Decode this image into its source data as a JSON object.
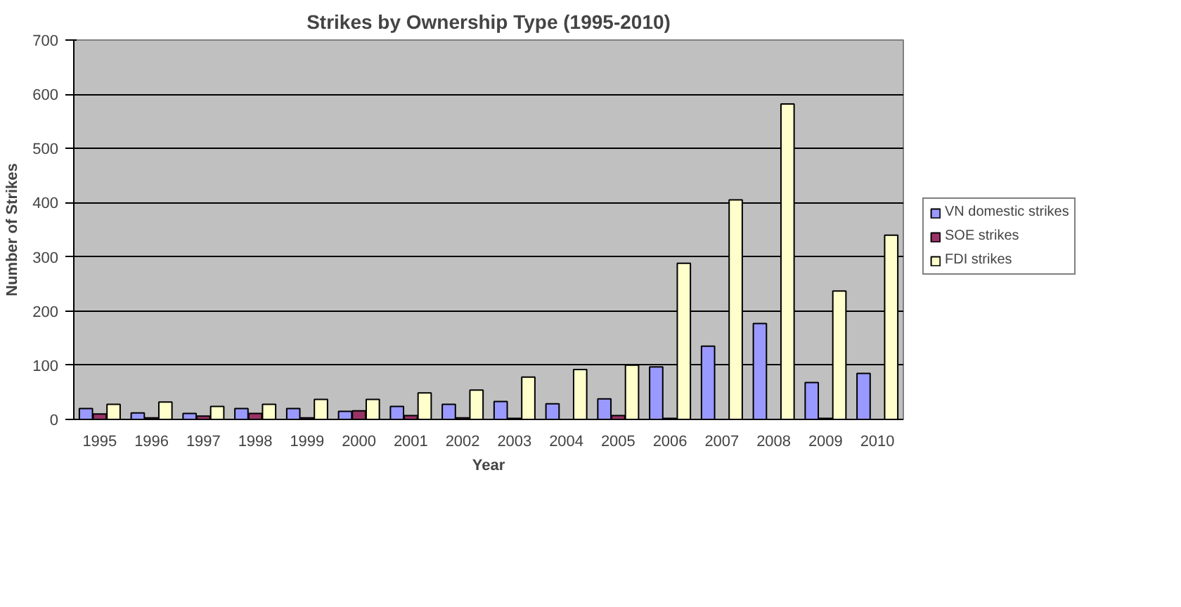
{
  "chart_data": {
    "type": "bar",
    "title": "Strikes by Ownership Type (1995-2010)",
    "xlabel": "Year",
    "ylabel": "Number of Strikes",
    "categories": [
      "1995",
      "1996",
      "1997",
      "1998",
      "1999",
      "2000",
      "2001",
      "2002",
      "2003",
      "2004",
      "2005",
      "2006",
      "2007",
      "2008",
      "2009",
      "2010"
    ],
    "series": [
      {
        "name": "VN domestic strikes",
        "color": "#9999ff",
        "values": [
          20,
          12,
          11,
          20,
          20,
          15,
          24,
          28,
          33,
          29,
          38,
          97,
          135,
          177,
          68,
          85
        ]
      },
      {
        "name": "SOE strikes",
        "color": "#993366",
        "values": [
          10,
          3,
          6,
          11,
          3,
          16,
          7,
          3,
          2,
          0,
          7,
          2,
          0,
          0,
          2,
          0
        ]
      },
      {
        "name": "FDI strikes",
        "color": "#ffffcc",
        "values": [
          28,
          32,
          24,
          28,
          37,
          37,
          49,
          54,
          78,
          92,
          100,
          288,
          405,
          582,
          237,
          340
        ]
      }
    ],
    "ylim": [
      0,
      700
    ],
    "yticks": [
      0,
      100,
      200,
      300,
      400,
      500,
      600,
      700
    ],
    "grid": "y",
    "legend": "right"
  }
}
